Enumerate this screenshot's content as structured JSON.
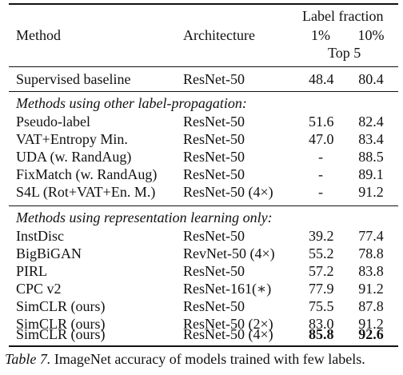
{
  "header": {
    "method": "Method",
    "architecture": "Architecture",
    "label_fraction": "Label fraction",
    "col1": "1%",
    "col2": "10%",
    "top5": "Top 5"
  },
  "baseline": {
    "method": "Supervised baseline",
    "arch": "ResNet-50",
    "v1": "48.4",
    "v10": "80.4"
  },
  "section1": {
    "title": "Methods using other label-propagation:",
    "rows": [
      {
        "method": "Pseudo-label",
        "arch": "ResNet-50",
        "v1": "51.6",
        "v10": "82.4"
      },
      {
        "method": "VAT+Entropy Min.",
        "arch": "ResNet-50",
        "v1": "47.0",
        "v10": "83.4"
      },
      {
        "method": "UDA (w. RandAug)",
        "arch": "ResNet-50",
        "v1": "-",
        "v10": "88.5"
      },
      {
        "method": "FixMatch (w. RandAug)",
        "arch": "ResNet-50",
        "v1": "-",
        "v10": "89.1"
      },
      {
        "method": "S4L (Rot+VAT+En. M.)",
        "arch": "ResNet-50 (4×)",
        "v1": "-",
        "v10": "91.2"
      }
    ]
  },
  "section2": {
    "title": "Methods using representation learning only:",
    "rows": [
      {
        "method": "InstDisc",
        "arch": "ResNet-50",
        "v1": "39.2",
        "v10": "77.4"
      },
      {
        "method": "BigBiGAN",
        "arch": "RevNet-50 (4×)",
        "v1": "55.2",
        "v10": "78.8"
      },
      {
        "method": "PIRL",
        "arch": "ResNet-50",
        "v1": "57.2",
        "v10": "83.8"
      },
      {
        "method": "CPC v2",
        "arch": "ResNet-161(∗)",
        "v1": "77.9",
        "v10": "91.2"
      },
      {
        "method": "SimCLR (ours)",
        "arch": "ResNet-50",
        "v1": "75.5",
        "v10": "87.8"
      },
      {
        "method": "SimCLR (ours)",
        "arch": "ResNet-50 (2×)",
        "v1": "83.0",
        "v10": "91.2"
      },
      {
        "method": "SimCLR (ours)",
        "arch": "ResNet-50 (4×)",
        "v1": "85.8",
        "v10": "92.6"
      }
    ]
  },
  "caption": {
    "label": "Table 7.",
    "text": " ImageNet accuracy of models trained with few labels."
  }
}
